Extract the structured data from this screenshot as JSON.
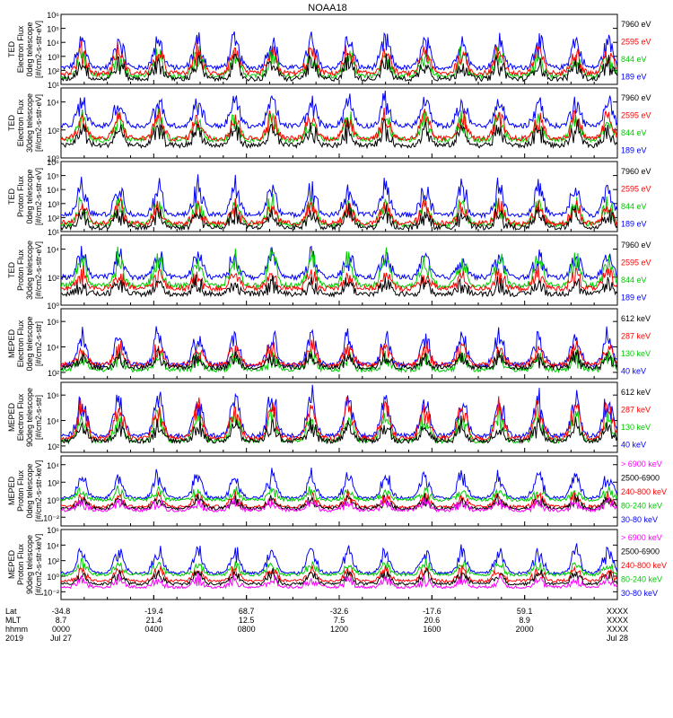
{
  "chart_data": {
    "type": "line",
    "title": "NOAA18",
    "panels": [
      {
        "ylabel": [
          "TED",
          "Electron Flux",
          "0deg telescope",
          "[#/cm2-s-str-eV]"
        ],
        "yticks": [
          {
            "exp": 1,
            "text": "10¹"
          },
          {
            "exp": 2,
            "text": "10²"
          },
          {
            "exp": 3,
            "text": "10³"
          },
          {
            "exp": 4,
            "text": "10⁴"
          },
          {
            "exp": 5,
            "text": "10⁵"
          },
          {
            "exp": 6,
            "text": "10⁶"
          }
        ],
        "ylim_exp": [
          1,
          6
        ],
        "series": [
          {
            "name": "7960 eV",
            "color": "#000000",
            "base": 1.4,
            "spread": 1.2
          },
          {
            "name": "2595 eV",
            "color": "#ff0000",
            "base": 1.8,
            "spread": 1.6
          },
          {
            "name": "844 eV",
            "color": "#00cc00",
            "base": 1.6,
            "spread": 1.5
          },
          {
            "name": "189 eV",
            "color": "#0000ff",
            "base": 2.2,
            "spread": 2.0
          }
        ]
      },
      {
        "ylabel": [
          "TED",
          "Electron Flux",
          "30deg telescope",
          "[#/cm2-s-str-eV]"
        ],
        "yticks": [
          {
            "exp": 0,
            "text": "10⁰"
          },
          {
            "exp": 2,
            "text": "10²"
          },
          {
            "exp": 4,
            "text": "10⁴"
          }
        ],
        "ylim_exp": [
          0,
          5
        ],
        "series": [
          {
            "name": "7960 eV",
            "color": "#000000",
            "base": 0.9,
            "spread": 1.2
          },
          {
            "name": "2595 eV",
            "color": "#ff0000",
            "base": 1.4,
            "spread": 1.6
          },
          {
            "name": "844 eV",
            "color": "#00cc00",
            "base": 1.3,
            "spread": 1.5
          },
          {
            "name": "189 eV",
            "color": "#0000ff",
            "base": 2.3,
            "spread": 1.8
          }
        ]
      },
      {
        "ylabel": [
          "TED",
          "Proton Flux",
          "0deg telescope",
          "[#/cm2-s-str-eV]"
        ],
        "yticks": [
          {
            "exp": 1,
            "text": "10¹"
          },
          {
            "exp": 2,
            "text": "10²"
          },
          {
            "exp": 3,
            "text": "10³"
          },
          {
            "exp": 4,
            "text": "10⁴"
          },
          {
            "exp": 5,
            "text": "10⁵"
          },
          {
            "exp": 6,
            "text": "10⁶"
          }
        ],
        "ylim_exp": [
          1,
          6
        ],
        "series": [
          {
            "name": "7960 eV",
            "color": "#000000",
            "base": 1.3,
            "spread": 1.0
          },
          {
            "name": "2595 eV",
            "color": "#ff0000",
            "base": 1.6,
            "spread": 1.2
          },
          {
            "name": "844 eV",
            "color": "#00cc00",
            "base": 1.5,
            "spread": 1.6
          },
          {
            "name": "189 eV",
            "color": "#0000ff",
            "base": 2.2,
            "spread": 2.0
          }
        ]
      },
      {
        "ylabel": [
          "TED",
          "Proton Flux",
          "30deg telescope",
          "[#/cm2-s-str-eV]"
        ],
        "yticks": [
          {
            "exp": 0,
            "text": "10⁰"
          },
          {
            "exp": 2,
            "text": "10²"
          },
          {
            "exp": 4,
            "text": "10⁴"
          }
        ],
        "ylim_exp": [
          0,
          5
        ],
        "series": [
          {
            "name": "7960 eV",
            "color": "#000000",
            "base": 0.8,
            "spread": 0.8
          },
          {
            "name": "2595 eV",
            "color": "#ff0000",
            "base": 1.2,
            "spread": 1.0
          },
          {
            "name": "844 eV",
            "color": "#00cc00",
            "base": 1.4,
            "spread": 2.0
          },
          {
            "name": "189 eV",
            "color": "#0000ff",
            "base": 2.0,
            "spread": 1.6
          }
        ]
      },
      {
        "ylabel": [
          "MEPED",
          "Electron Flux",
          "0deg telescope",
          "[#/cm2-s-str]"
        ],
        "yticks": [
          {
            "exp": 2,
            "text": "10²"
          },
          {
            "exp": 4,
            "text": "10⁴"
          },
          {
            "exp": 6,
            "text": "10⁶"
          }
        ],
        "ylim_exp": [
          1.5,
          7
        ],
        "series": [
          {
            "name": "612 keV",
            "color": "#000000",
            "base": 2.4,
            "spread": 0.8
          },
          {
            "name": "287 keV",
            "color": "#ff0000",
            "base": 2.6,
            "spread": 1.4
          },
          {
            "name": "130 keV",
            "color": "#00cc00",
            "base": 2.2,
            "spread": 1.0
          },
          {
            "name": "40 keV",
            "color": "#0000ff",
            "base": 2.6,
            "spread": 2.4
          }
        ]
      },
      {
        "ylabel": [
          "MEPED",
          "Electron Flux",
          "90deg telescope",
          "[#/cm2-s-str]"
        ],
        "yticks": [
          {
            "exp": 2,
            "text": "10²"
          },
          {
            "exp": 4,
            "text": "10⁴"
          },
          {
            "exp": 6,
            "text": "10⁶"
          }
        ],
        "ylim_exp": [
          1.5,
          7
        ],
        "series": [
          {
            "name": "612 keV",
            "color": "#000000",
            "base": 2.4,
            "spread": 1.2
          },
          {
            "name": "287 keV",
            "color": "#ff0000",
            "base": 2.6,
            "spread": 2.4
          },
          {
            "name": "130 keV",
            "color": "#00cc00",
            "base": 2.4,
            "spread": 2.0
          },
          {
            "name": "40 keV",
            "color": "#0000ff",
            "base": 2.8,
            "spread": 3.0
          }
        ]
      },
      {
        "ylabel": [
          "MEPED",
          "Proton Flux",
          "0deg telescope",
          "[#/cm2-s-str-keV]"
        ],
        "yticks": [
          {
            "exp": -2,
            "text": "10⁻²"
          },
          {
            "exp": 0,
            "text": "10⁰"
          },
          {
            "exp": 2,
            "text": "10²"
          },
          {
            "exp": 4,
            "text": "10⁴"
          }
        ],
        "ylim_exp": [
          -3,
          5
        ],
        "series": [
          {
            "name": "> 6900 keV",
            "color": "#ff00ff",
            "base": -1.2,
            "spread": 1.0
          },
          {
            "name": "2500-6900",
            "color": "#000000",
            "base": -1.0,
            "spread": 1.0
          },
          {
            "name": "240-800 keV",
            "color": "#ff0000",
            "base": -0.8,
            "spread": 1.2
          },
          {
            "name": "80-240 keV",
            "color": "#00cc00",
            "base": 0.0,
            "spread": 1.0
          },
          {
            "name": "30-80 keV",
            "color": "#0000ff",
            "base": 0.2,
            "spread": 2.6
          }
        ]
      },
      {
        "ylabel": [
          "MEPED",
          "Proton Flux",
          "90deg telescope",
          "[#/cm2-s-str-keV]"
        ],
        "yticks": [
          {
            "exp": -2,
            "text": "10⁻²"
          },
          {
            "exp": 0,
            "text": "10⁰"
          },
          {
            "exp": 2,
            "text": "10²"
          },
          {
            "exp": 4,
            "text": "10⁴"
          },
          {
            "exp": 6,
            "text": "10⁶"
          }
        ],
        "ylim_exp": [
          -3,
          6
        ],
        "series": [
          {
            "name": "> 6900 keV",
            "color": "#ff00ff",
            "base": -1.4,
            "spread": 1.0
          },
          {
            "name": "2500-6900",
            "color": "#000000",
            "base": -1.0,
            "spread": 1.4
          },
          {
            "name": "240-800 keV",
            "color": "#ff0000",
            "base": -0.6,
            "spread": 1.4
          },
          {
            "name": "80-240 keV",
            "color": "#00cc00",
            "base": 0.2,
            "spread": 1.4
          },
          {
            "name": "30-80 keV",
            "color": "#0000ff",
            "base": 0.4,
            "spread": 3.0
          }
        ]
      }
    ],
    "x_axis": {
      "row_labels": [
        "Lat",
        "MLT",
        "hhmm",
        "2019"
      ],
      "ticks": [
        {
          "hour": 0,
          "lat": "-34.8",
          "mlt": "8.7",
          "hhmm": "0000",
          "date": "Jul 27"
        },
        {
          "hour": 4,
          "lat": "-19.4",
          "mlt": "21.4",
          "hhmm": "0400",
          "date": ""
        },
        {
          "hour": 8,
          "lat": "68.7",
          "mlt": "12.5",
          "hhmm": "0800",
          "date": ""
        },
        {
          "hour": 12,
          "lat": "-32.6",
          "mlt": "7.5",
          "hhmm": "1200",
          "date": ""
        },
        {
          "hour": 16,
          "lat": "-17.6",
          "mlt": "20.6",
          "hhmm": "1600",
          "date": ""
        },
        {
          "hour": 20,
          "lat": "59.1",
          "mlt": "8.9",
          "hhmm": "2000",
          "date": ""
        },
        {
          "hour": 24,
          "lat": "XXXX",
          "mlt": "XXXX",
          "hhmm": "XXXX",
          "date": "Jul 28"
        }
      ],
      "xlim_hours": [
        0,
        24
      ]
    },
    "pass_peaks_hours": [
      0.9,
      2.5,
      4.2,
      5.9,
      7.5,
      9.1,
      10.8,
      12.4,
      14.0,
      15.7,
      17.3,
      18.9,
      20.6,
      22.2,
      23.6
    ]
  }
}
